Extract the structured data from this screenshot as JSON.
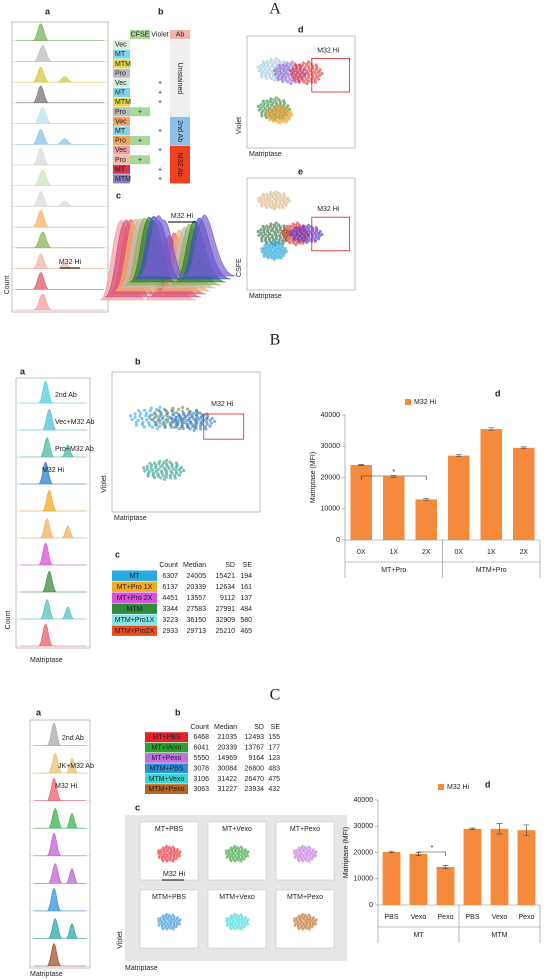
{
  "panels": [
    "A",
    "B",
    "C"
  ],
  "A": {
    "a": {
      "label": "a",
      "y_label": "Count",
      "gate": "M32 Hi"
    },
    "b": {
      "label": "b",
      "columns": [
        "CFSE",
        "Violet",
        "Ab"
      ],
      "rows": [
        {
          "name": "Vec",
          "color": "#d9eddc"
        },
        {
          "name": "MT",
          "color": "#7fd3ea"
        },
        {
          "name": "MTM",
          "color": "#e6d84a"
        },
        {
          "name": "Pro",
          "color": "#bdbdbd"
        },
        {
          "name": "Vec",
          "color": "#d9eddc",
          "violet": "+"
        },
        {
          "name": "MT",
          "color": "#7fd3ea",
          "violet": "+"
        },
        {
          "name": "MTM",
          "color": "#e6d84a",
          "violet": "+"
        },
        {
          "name": "Pro",
          "color": "#bdbdbd",
          "cfse": "+"
        },
        {
          "name": "Vec",
          "color": "#f6a35e"
        },
        {
          "name": "MT",
          "color": "#7fd3ea",
          "violet": "+"
        },
        {
          "name": "Pro",
          "color": "#f6a35e",
          "cfse": "+"
        },
        {
          "name": "Vec",
          "color": "#f3a0a0",
          "violet": "+"
        },
        {
          "name": "Pro",
          "color": "#f3b8a8",
          "cfse": "+"
        },
        {
          "name": "MT",
          "color": "#e0304a",
          "violet": "+"
        },
        {
          "name": "MTM",
          "color": "#8e7cc3",
          "violet": "+"
        }
      ],
      "groups": [
        "Unstained",
        "2nd Ab",
        "M32 Ab"
      ]
    },
    "c": {
      "label": "c",
      "gate": "M32 Hi"
    },
    "d": {
      "label": "d",
      "gate": "M32 Hi",
      "y_label": "Violet",
      "x_label": "Matriptase"
    },
    "e": {
      "label": "e",
      "gate": "M32 Hi",
      "y_label": "CSFE",
      "x_label": "Matriptase"
    }
  },
  "B": {
    "a": {
      "label": "a",
      "traces": [
        "2nd Ab",
        "Vec+M32 Ab",
        "Pro+M32 Ab",
        "M32 Hi"
      ],
      "y_label": "Count",
      "x_label": "Matriptase"
    },
    "b": {
      "label": "b",
      "gate": "M32 Hi",
      "y_label": "Violet",
      "x_label": "Matriptase"
    },
    "c": {
      "label": "c",
      "columns": [
        "Count",
        "Median",
        "SD",
        "SE"
      ],
      "rows": [
        {
          "name": "MT",
          "color": "#2aa8e0",
          "values": [
            6307,
            24005,
            15421,
            194
          ]
        },
        {
          "name": "MT+Pro 1X",
          "color": "#f7a823",
          "values": [
            6137,
            20339,
            12634,
            161
          ]
        },
        {
          "name": "MT+Pro 2X",
          "color": "#d84fd8",
          "values": [
            4451,
            13557,
            9112,
            137
          ]
        },
        {
          "name": "MTM",
          "color": "#2e8b3c",
          "values": [
            3344,
            27583,
            27991,
            484
          ]
        },
        {
          "name": "MTM+Pro1X",
          "color": "#7fe3e8",
          "values": [
            3223,
            36150,
            32909,
            580
          ]
        },
        {
          "name": "MTM+Pro2X",
          "color": "#ef4a23",
          "values": [
            2933,
            29713,
            25210,
            465
          ]
        }
      ]
    },
    "d": {
      "label": "d"
    }
  },
  "C": {
    "a": {
      "label": "a",
      "traces": [
        "2nd Ab",
        "JK+M32 Ab",
        "M32 Hi"
      ],
      "x_label": "Matriptase"
    },
    "b": {
      "label": "b",
      "columns": [
        "Count",
        "Median",
        "SD",
        "SE"
      ],
      "rows": [
        {
          "name": "MT+PBS",
          "color": "#e8202a",
          "values": [
            6468,
            21035,
            12493,
            155
          ]
        },
        {
          "name": "MT+Vexo",
          "color": "#2ca02c",
          "values": [
            6041,
            20339,
            13767,
            177
          ]
        },
        {
          "name": "MT+Pexo",
          "color": "#c070e0",
          "values": [
            5550,
            14969,
            9164,
            123
          ]
        },
        {
          "name": "MTM+PBS",
          "color": "#2a8fd8",
          "values": [
            3078,
            30084,
            26800,
            483
          ]
        },
        {
          "name": "MTM+Vexo",
          "color": "#3ad6d6",
          "values": [
            3106,
            31422,
            26470,
            475
          ]
        },
        {
          "name": "MTM+Pexo",
          "color": "#b8641e",
          "values": [
            3063,
            31227,
            23934,
            432
          ]
        }
      ]
    },
    "c": {
      "label": "c",
      "plots": [
        "MT+PBS",
        "MT+Vexo",
        "MT+Pexo",
        "MTM+PBS",
        "MTM+Vexo",
        "MTM+Pexo"
      ],
      "gate": "M32 Hi",
      "y_label": "Violet",
      "x_label": "Matriptase"
    },
    "d": {
      "label": "d"
    }
  },
  "chart_data": [
    {
      "type": "bar",
      "y_label": "Matriptase (MFI)",
      "categories": [
        "0X",
        "1X",
        "2X",
        "0X",
        "1X",
        "2X"
      ],
      "groups": [
        "MT+Pro",
        "MTM+Pro"
      ],
      "series": [
        {
          "name": "M32 Hi",
          "color": "#f58a3c",
          "values": [
            24000,
            20300,
            13000,
            27000,
            35500,
            29500
          ],
          "errors": [
            200,
            300,
            300,
            300,
            400,
            300
          ]
        }
      ],
      "ylim": [
        0,
        40000
      ],
      "yticks": [
        0,
        10000,
        20000,
        30000,
        40000
      ],
      "annotation": "*"
    },
    {
      "type": "bar",
      "y_label": "Matriptase (MFI)",
      "categories": [
        "PBS",
        "Vexo",
        "Pexo",
        "PBS",
        "Vexo",
        "Pexo"
      ],
      "groups": [
        "MT",
        "MTM"
      ],
      "series": [
        {
          "name": "M32 Hi",
          "color": "#f58a3c",
          "values": [
            20200,
            19500,
            14500,
            29000,
            29000,
            28500
          ],
          "errors": [
            300,
            600,
            600,
            300,
            2000,
            2000
          ]
        }
      ],
      "ylim": [
        0,
        40000
      ],
      "yticks": [
        0,
        10000,
        20000,
        30000,
        40000
      ],
      "annotation": "*"
    }
  ]
}
